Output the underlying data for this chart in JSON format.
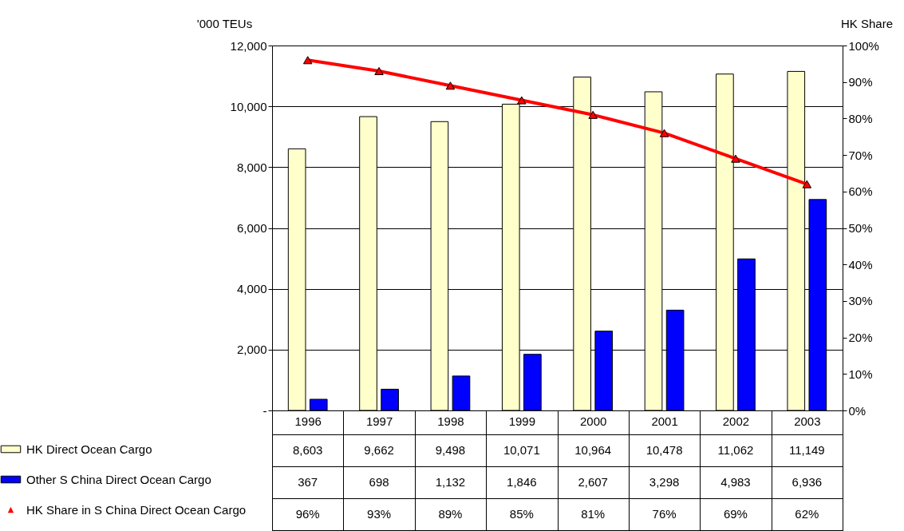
{
  "chart_data": {
    "type": "bar",
    "categories": [
      "1996",
      "1997",
      "1998",
      "1999",
      "2000",
      "2001",
      "2002",
      "2003"
    ],
    "series": [
      {
        "name": "HK Direct Ocean Cargo",
        "color": "#ffffcc",
        "values": [
          8603,
          9662,
          9498,
          10071,
          10964,
          10478,
          11062,
          11149
        ],
        "value_labels": [
          "8,603",
          "9,662",
          "9,498",
          "10,071",
          "10,964",
          "10,478",
          "11,062",
          "11,149"
        ]
      },
      {
        "name": "Other S China Direct Ocean Cargo",
        "color": "#0000ff",
        "values": [
          367,
          698,
          1132,
          1846,
          2607,
          3298,
          4983,
          6936
        ],
        "value_labels": [
          "367",
          "698",
          "1,132",
          "1,846",
          "2,607",
          "3,298",
          "4,983",
          "6,936"
        ]
      },
      {
        "name": "HK Share in S China Direct Ocean Cargo",
        "type": "line",
        "axis": "y2",
        "color": "#ff0000",
        "values": [
          96,
          93,
          89,
          85,
          81,
          76,
          69,
          62
        ],
        "value_labels": [
          "96%",
          "93%",
          "89%",
          "85%",
          "81%",
          "76%",
          "69%",
          "62%"
        ]
      }
    ],
    "ylabel": "'000 TEUs",
    "y2label": "HK Share",
    "ylim": [
      0,
      12000
    ],
    "yticks": [
      {
        "value": 0,
        "label": "-"
      },
      {
        "value": 2000,
        "label": "2,000"
      },
      {
        "value": 4000,
        "label": "4,000"
      },
      {
        "value": 6000,
        "label": "6,000"
      },
      {
        "value": 8000,
        "label": "8,000"
      },
      {
        "value": 10000,
        "label": "10,000"
      },
      {
        "value": 12000,
        "label": "12,000"
      }
    ],
    "y2lim": [
      0,
      100
    ],
    "y2ticks": [
      {
        "value": 0,
        "label": "0%"
      },
      {
        "value": 10,
        "label": "10%"
      },
      {
        "value": 20,
        "label": "20%"
      },
      {
        "value": 30,
        "label": "30%"
      },
      {
        "value": 40,
        "label": "40%"
      },
      {
        "value": 50,
        "label": "50%"
      },
      {
        "value": 60,
        "label": "60%"
      },
      {
        "value": 70,
        "label": "70%"
      },
      {
        "value": 80,
        "label": "80%"
      },
      {
        "value": 90,
        "label": "90%"
      },
      {
        "value": 100,
        "label": "100%"
      }
    ],
    "grid": "y",
    "legend": "bottom",
    "marker": "triangle"
  }
}
